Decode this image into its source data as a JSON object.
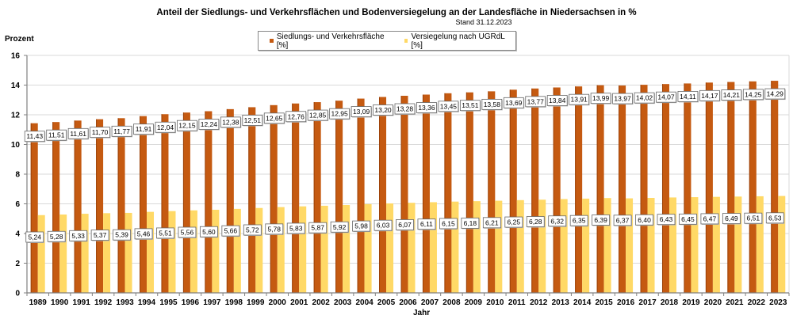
{
  "chart_data": {
    "type": "bar",
    "title": "Anteil der Siedlungs- und Verkehrsflächen und Bodenversiegelung an der Landesfläche in Niedersachsen in  %",
    "subtitle": "Stand 31.12.2023",
    "xlabel": "Jahr",
    "ylabel": "Prozent",
    "ylim": [
      0,
      16
    ],
    "yticks": [
      "0",
      "2",
      "4",
      "6",
      "8",
      "10",
      "12",
      "14",
      "16"
    ],
    "ytick_values": [
      0,
      2,
      4,
      6,
      8,
      10,
      12,
      14,
      16
    ],
    "grid": true,
    "legend_position": "top-center",
    "categories": [
      "1989",
      "1990",
      "1991",
      "1992",
      "1993",
      "1994",
      "1995",
      "1996",
      "1997",
      "1998",
      "1999",
      "2000",
      "2001",
      "2002",
      "2003",
      "2004",
      "2005",
      "2006",
      "2007",
      "2008",
      "2009",
      "2010",
      "2011",
      "2012",
      "2013",
      "2014",
      "2015",
      "2016",
      "2017",
      "2018",
      "2019",
      "2020",
      "2021",
      "2022",
      "2023"
    ],
    "series": [
      {
        "name": "Siedlungs- und Verkehrsfläche [%]",
        "color": "#C55A11",
        "values": [
          11.43,
          11.51,
          11.61,
          11.7,
          11.77,
          11.91,
          12.04,
          12.15,
          12.24,
          12.38,
          12.51,
          12.65,
          12.76,
          12.85,
          12.95,
          13.09,
          13.2,
          13.28,
          13.36,
          13.45,
          13.51,
          13.58,
          13.69,
          13.77,
          13.84,
          13.91,
          13.99,
          13.97,
          14.02,
          14.07,
          14.11,
          14.17,
          14.21,
          14.25,
          14.29
        ],
        "labels": [
          "11,43",
          "11,51",
          "11,61",
          "11,70",
          "11,77",
          "11,91",
          "12,04",
          "12,15",
          "12,24",
          "12,38",
          "12,51",
          "12,65",
          "12,76",
          "12,85",
          "12,95",
          "13,09",
          "13,20",
          "13,28",
          "13,36",
          "13,45",
          "13,51",
          "13,58",
          "13,69",
          "13,77",
          "13,84",
          "13,91",
          "13,99",
          "13,97",
          "14,02",
          "14,07",
          "14,11",
          "14,17",
          "14,21",
          "14,25",
          "14,29"
        ]
      },
      {
        "name": "Versiegelung nach UGRdL [%]",
        "color": "#FFD966",
        "values": [
          5.24,
          5.28,
          5.33,
          5.37,
          5.39,
          5.46,
          5.51,
          5.56,
          5.6,
          5.66,
          5.72,
          5.78,
          5.83,
          5.87,
          5.92,
          5.98,
          6.03,
          6.07,
          6.11,
          6.15,
          6.18,
          6.21,
          6.25,
          6.28,
          6.32,
          6.35,
          6.39,
          6.37,
          6.4,
          6.43,
          6.45,
          6.47,
          6.49,
          6.51,
          6.53
        ],
        "labels": [
          "5,24",
          "5,28",
          "5,33",
          "5,37",
          "5,39",
          "5,46",
          "5,51",
          "5,56",
          "5,60",
          "5,66",
          "5,72",
          "5,78",
          "5,83",
          "5,87",
          "5,92",
          "5,98",
          "6,03",
          "6,07",
          "6,11",
          "6,15",
          "6,18",
          "6,21",
          "6,25",
          "6,28",
          "6,32",
          "6,35",
          "6,39",
          "6,37",
          "6,40",
          "6,43",
          "6,45",
          "6,47",
          "6,49",
          "6,51",
          "6,53"
        ]
      }
    ]
  }
}
